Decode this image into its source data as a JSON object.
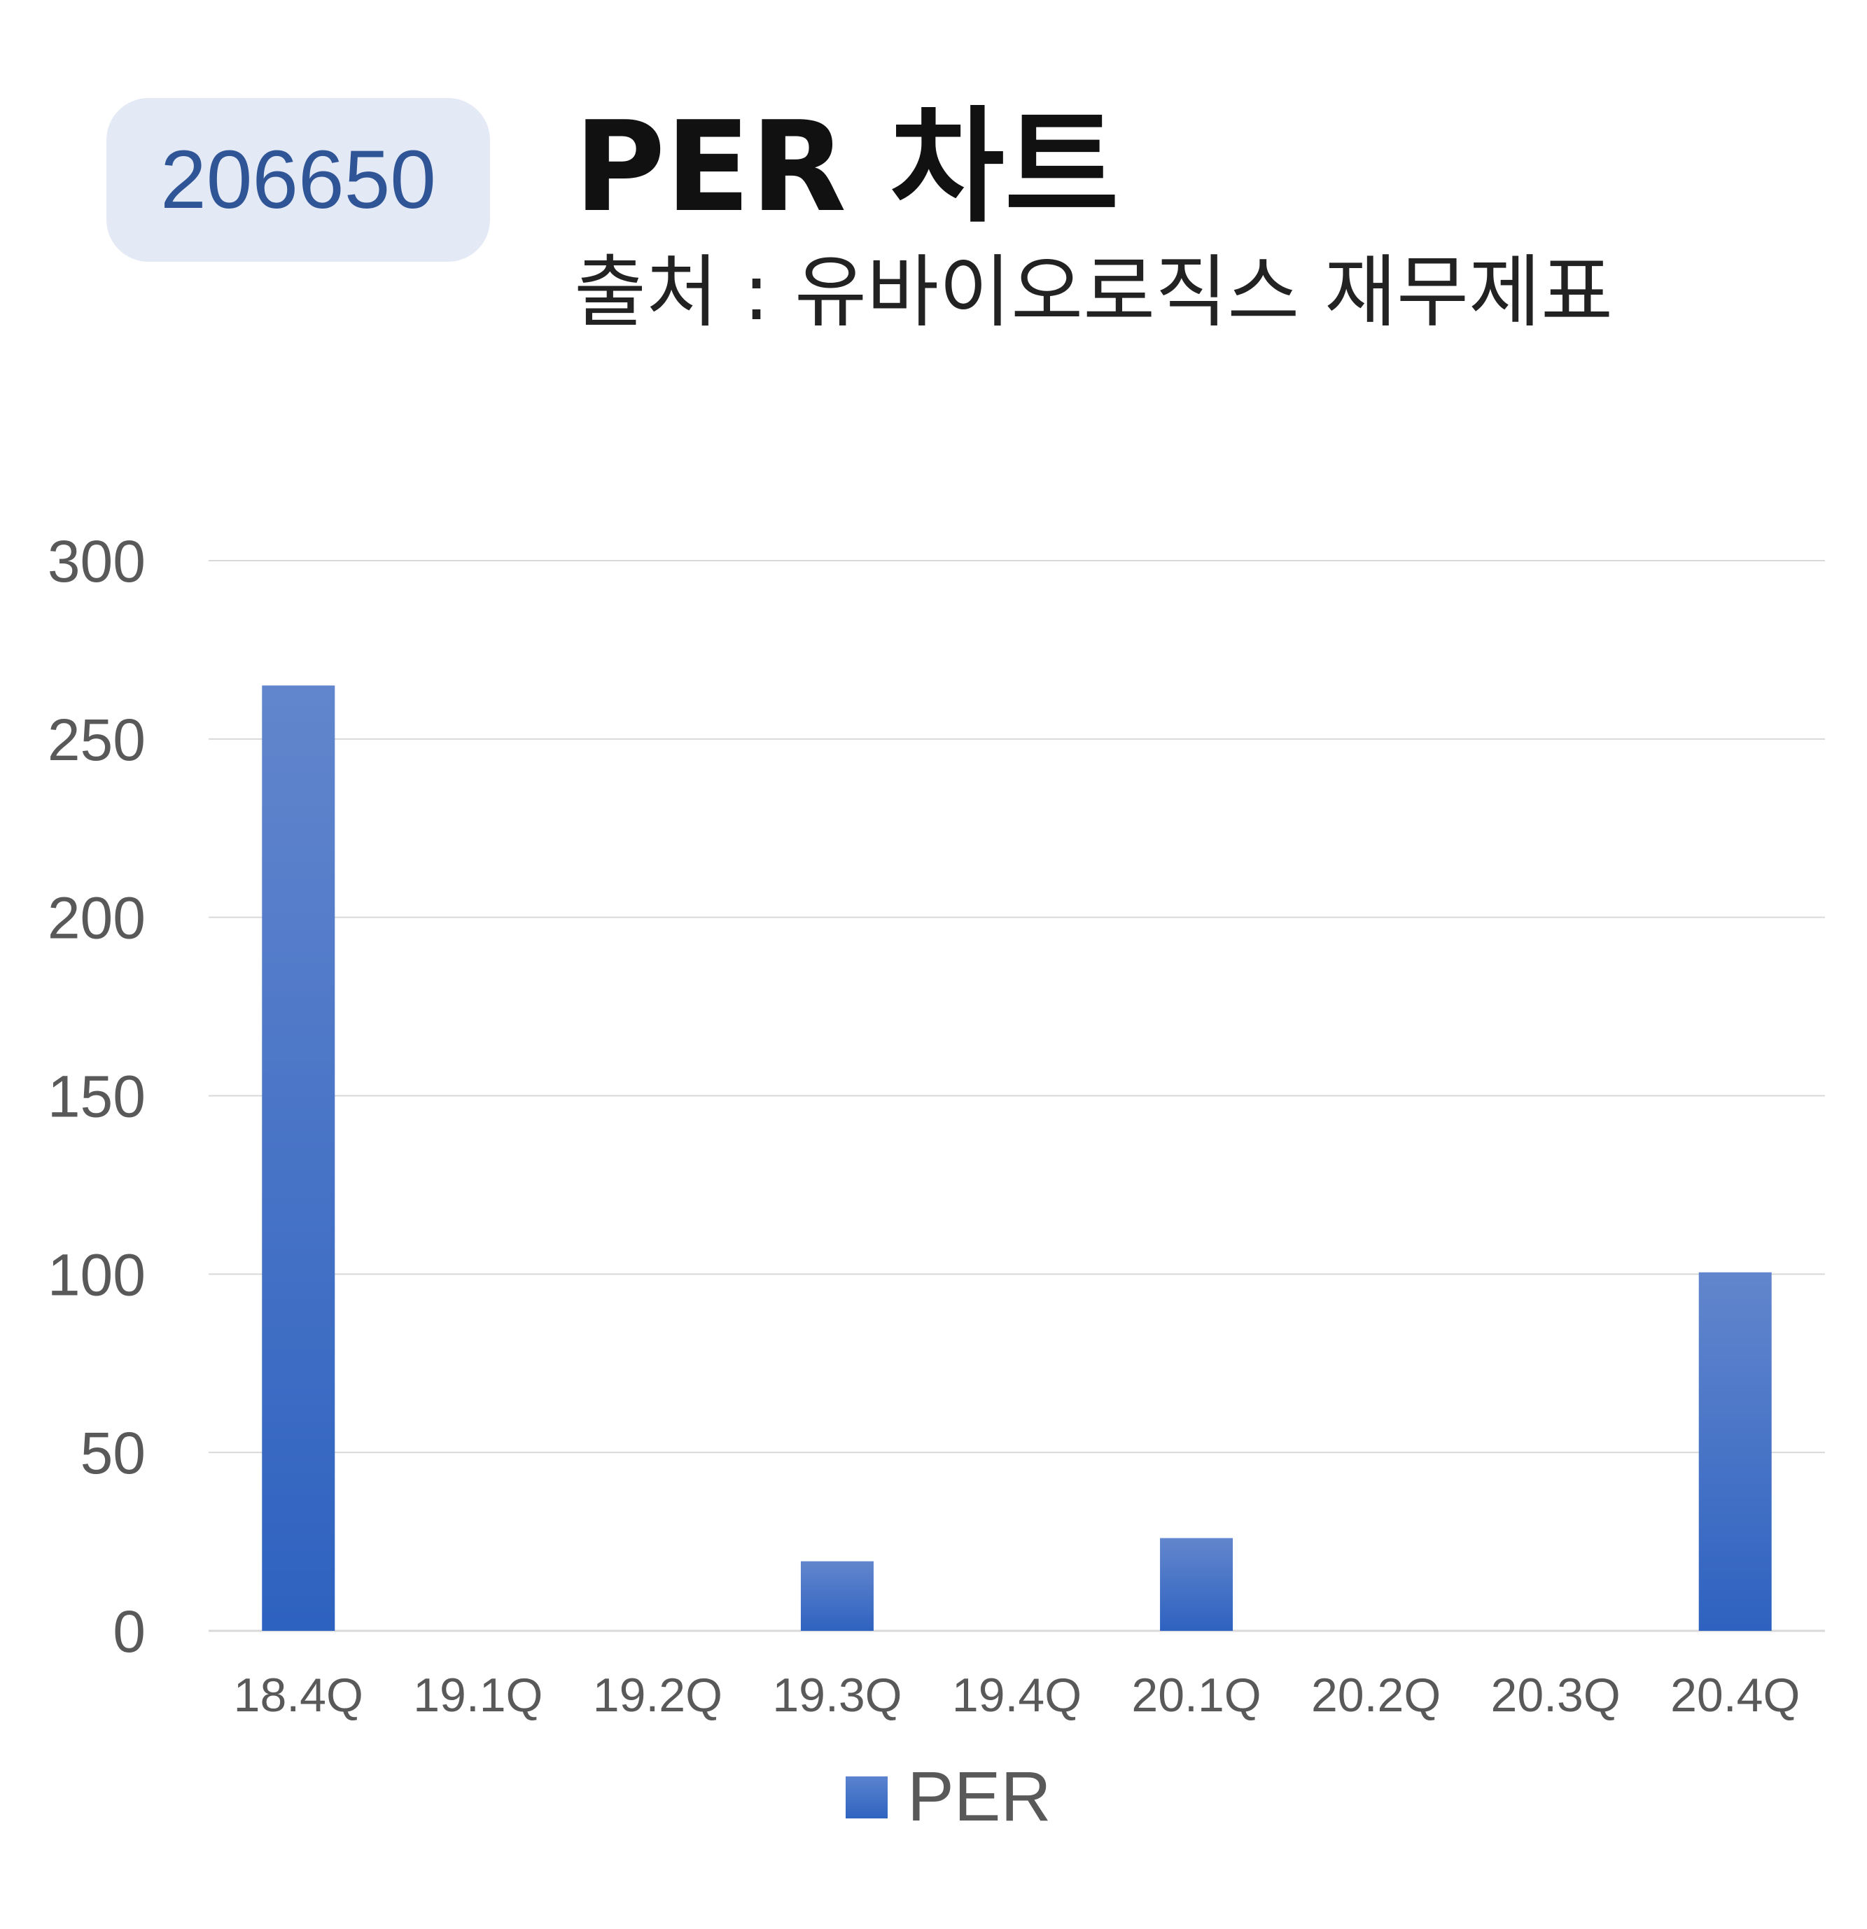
{
  "header": {
    "code_badge": "206650",
    "title": "PER 차트",
    "subtitle": "출처 : 유바이오로직스 재무제표"
  },
  "colors": {
    "bar_top": "#6286cd",
    "bar_bottom": "#2e62c0",
    "badge_bg": "#e4eaf5",
    "badge_text": "#2f5597",
    "grid": "#d9d9d9",
    "tick_text": "#595959"
  },
  "chart_data": {
    "type": "bar",
    "categories": [
      "18.4Q",
      "19.1Q",
      "19.2Q",
      "19.3Q",
      "19.4Q",
      "20.1Q",
      "20.2Q",
      "20.3Q",
      "20.4Q"
    ],
    "series": [
      {
        "name": "PER",
        "values": [
          265,
          0,
          0,
          19.5,
          0,
          26,
          0,
          0,
          100.5
        ]
      }
    ],
    "ylim": [
      0,
      300
    ],
    "yticks": [
      0,
      50,
      100,
      150,
      200,
      250,
      300
    ],
    "grid": true,
    "legend": "bottom",
    "title": "PER 차트",
    "xlabel": "",
    "ylabel": ""
  }
}
